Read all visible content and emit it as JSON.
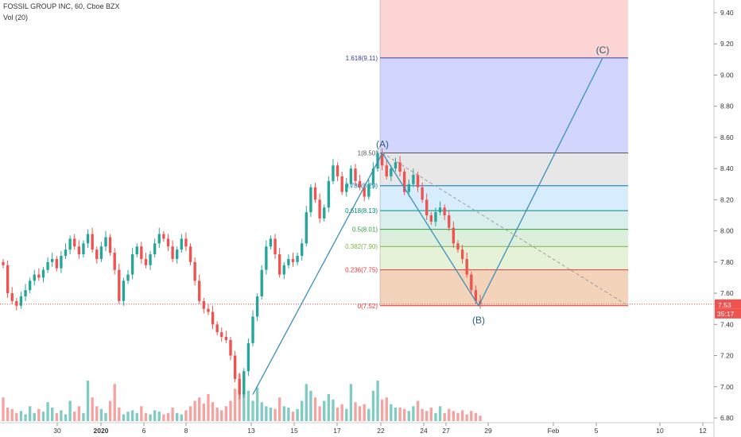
{
  "header": {
    "title": "FOSSIL GROUP INC, 60, Cboe BZX",
    "indicator": "Vol (20)"
  },
  "colors": {
    "up": "#26a69a",
    "down": "#ef5350",
    "vol_up": "#80cbc4",
    "vol_down": "#f5a3a1",
    "wave": "#3a8fbb",
    "price_tag": "#ef5350",
    "countdown_tag": "#ef5350"
  },
  "chart_data": {
    "type": "candlestick",
    "title": "FOSSIL GROUP INC, 60, Cboe BZX",
    "ylim": [
      6.8,
      9.5
    ],
    "y_ticks": [
      "6.80",
      "7.00",
      "7.20",
      "7.40",
      "7.60",
      "7.80",
      "8.00",
      "8.20",
      "8.40",
      "8.60",
      "8.80",
      "9.00",
      "9.20",
      "9.40"
    ],
    "x_ticks": [
      "30",
      "2020",
      "6",
      "8",
      "13",
      "15",
      "17",
      "22",
      "24",
      "27",
      "29",
      "Feb",
      "5",
      "10",
      "12"
    ],
    "last_price": "7.53",
    "countdown": "35:17",
    "closes": [
      7.78,
      7.6,
      7.55,
      7.52,
      7.58,
      7.62,
      7.68,
      7.72,
      7.7,
      7.75,
      7.8,
      7.82,
      7.76,
      7.84,
      7.88,
      7.95,
      7.9,
      7.85,
      7.92,
      7.98,
      7.88,
      7.82,
      7.9,
      7.96,
      7.86,
      7.75,
      7.55,
      7.68,
      7.72,
      7.85,
      7.9,
      7.82,
      7.78,
      7.85,
      7.92,
      7.98,
      7.95,
      7.9,
      7.82,
      7.88,
      7.95,
      7.9,
      7.8,
      7.68,
      7.55,
      7.5,
      7.48,
      7.4,
      7.35,
      7.32,
      7.3,
      7.2,
      7.05,
      6.95,
      7.1,
      7.28,
      7.45,
      7.58,
      7.75,
      7.9,
      7.95,
      7.85,
      7.72,
      7.78,
      7.82,
      7.8,
      7.84,
      7.92,
      8.12,
      8.28,
      8.2,
      8.08,
      8.15,
      8.32,
      8.42,
      8.35,
      8.25,
      8.3,
      8.4,
      8.32,
      8.28,
      8.22,
      8.3,
      8.4,
      8.5,
      8.42,
      8.35,
      8.4,
      8.44,
      8.38,
      8.25,
      8.3,
      8.36,
      8.28,
      8.2,
      8.1,
      8.06,
      8.12,
      8.15,
      8.1,
      8.02,
      7.92,
      7.88,
      7.82,
      7.72,
      7.62,
      7.55,
      7.53
    ],
    "volumes": [
      0.35,
      0.2,
      0.18,
      0.12,
      0.15,
      0.1,
      0.22,
      0.12,
      0.18,
      0.14,
      0.28,
      0.2,
      0.12,
      0.16,
      0.1,
      0.3,
      0.14,
      0.22,
      0.12,
      0.6,
      0.35,
      0.22,
      0.18,
      0.12,
      0.3,
      0.55,
      0.2,
      0.1,
      0.14,
      0.16,
      0.12,
      0.22,
      0.12,
      0.1,
      0.16,
      0.14,
      0.1,
      0.12,
      0.2,
      0.12,
      0.1,
      0.16,
      0.22,
      0.3,
      0.35,
      0.26,
      0.4,
      0.28,
      0.2,
      0.16,
      0.22,
      0.3,
      0.48,
      0.7,
      0.62,
      0.45,
      0.3,
      0.5,
      0.28,
      0.22,
      0.2,
      0.18,
      0.35,
      0.22,
      0.2,
      0.14,
      0.18,
      0.3,
      0.55,
      0.45,
      0.35,
      0.22,
      0.3,
      0.4,
      0.32,
      0.2,
      0.25,
      0.18,
      0.55,
      0.28,
      0.22,
      0.25,
      0.18,
      0.45,
      0.6,
      0.32,
      0.35,
      0.25,
      0.2,
      0.2,
      0.18,
      0.15,
      0.22,
      0.3,
      0.18,
      0.15,
      0.2,
      0.12,
      0.22,
      0.12,
      0.18,
      0.15,
      0.12,
      0.16,
      0.1,
      0.15,
      0.12,
      0.08
    ],
    "fibonacci": {
      "levels": [
        {
          "label": "0(7.52)",
          "ratio": 0,
          "price": 7.52,
          "color": "#e53935",
          "fill": "rgba(239,83,80,0.20)"
        },
        {
          "label": "0.236(7.75)",
          "ratio": 0.236,
          "price": 7.75,
          "color": "#e53935",
          "fill": "rgba(205,220,57,0.20)"
        },
        {
          "label": "0.382(7.90)",
          "ratio": 0.382,
          "price": 7.9,
          "color": "#7cb342",
          "fill": "rgba(139,195,74,0.22)"
        },
        {
          "label": "0.5(8.01)",
          "ratio": 0.5,
          "price": 8.01,
          "color": "#2e9e3a",
          "fill": "rgba(76,175,80,0.20)"
        },
        {
          "label": "0.618(8.13)",
          "ratio": 0.618,
          "price": 8.13,
          "color": "#00897b",
          "fill": "rgba(38,166,154,0.18)"
        },
        {
          "label": "0.786(8.29)",
          "ratio": 0.786,
          "price": 8.29,
          "color": "#0277bd",
          "fill": "rgba(33,150,243,0.18)"
        },
        {
          "label": "1(8.50)",
          "ratio": 1,
          "price": 8.5,
          "color": "#555555",
          "fill": "rgba(120,120,120,0.18)"
        },
        {
          "label": "1.618(9.11)",
          "ratio": 1.618,
          "price": 9.11,
          "color": "#303f9f",
          "fill": "rgba(92,107,255,0.28)"
        }
      ]
    },
    "waves": [
      {
        "label": "(A)",
        "price": 8.5
      },
      {
        "label": "(B)",
        "price": 7.52
      },
      {
        "label": "(C)",
        "price": 9.11
      }
    ]
  }
}
